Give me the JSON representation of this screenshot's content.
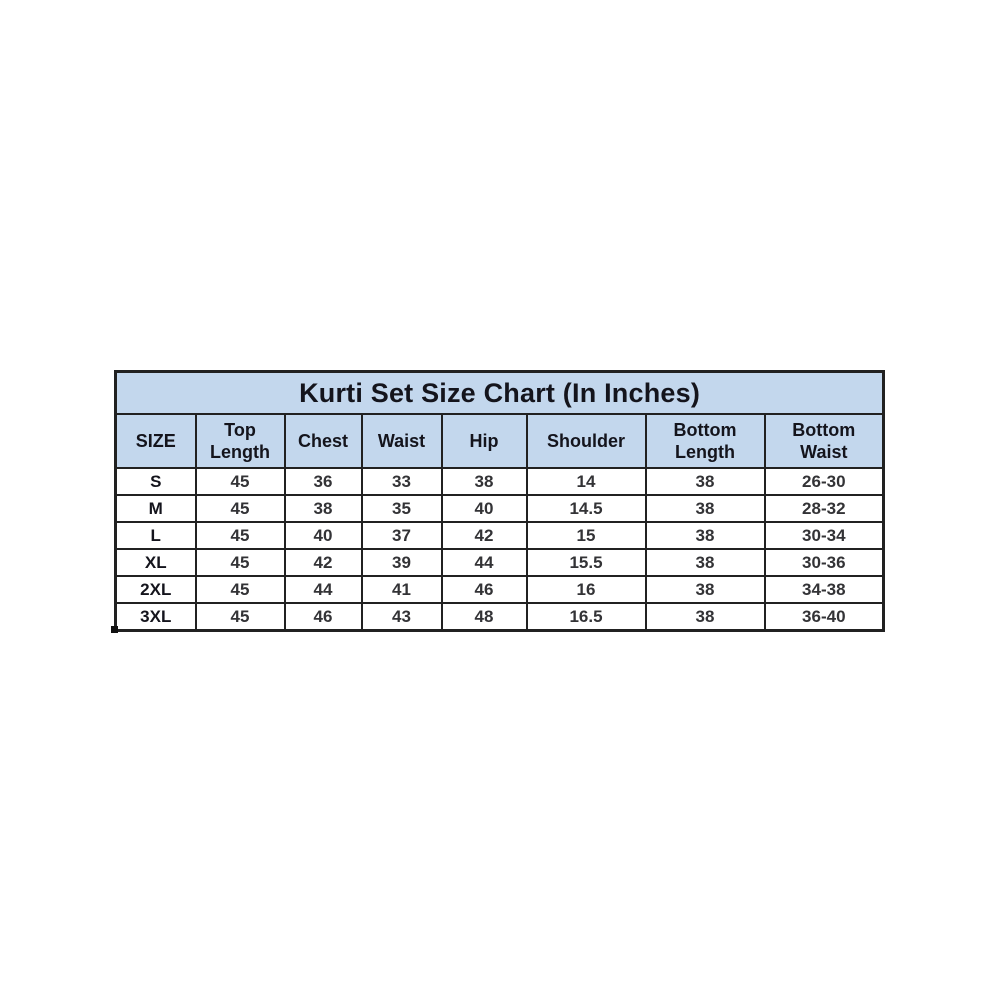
{
  "table_theme": {
    "header_bg": "#c3d7ed",
    "row_bg": "#ffffff",
    "border_color": "#212121",
    "heading_text": "#14141c",
    "data_text": "#333336",
    "page_bg": "#ffffff"
  },
  "chart_data": {
    "type": "table",
    "title": "Kurti Set Size Chart (In Inches)",
    "columns": [
      "SIZE",
      "Top Length",
      "Chest",
      "Waist",
      "Hip",
      "Shoulder",
      "Bottom Length",
      "Bottom Waist"
    ],
    "rows": [
      [
        "S",
        "45",
        "36",
        "33",
        "38",
        "14",
        "38",
        "26-30"
      ],
      [
        "M",
        "45",
        "38",
        "35",
        "40",
        "14.5",
        "38",
        "28-32"
      ],
      [
        "L",
        "45",
        "40",
        "37",
        "42",
        "15",
        "38",
        "30-34"
      ],
      [
        "XL",
        "45",
        "42",
        "39",
        "44",
        "15.5",
        "38",
        "30-36"
      ],
      [
        "2XL",
        "45",
        "44",
        "41",
        "46",
        "16",
        "38",
        "34-38"
      ],
      [
        "3XL",
        "45",
        "46",
        "43",
        "48",
        "16.5",
        "38",
        "36-40"
      ]
    ],
    "layout_hints": {
      "title_row_background": "#c3d7ed",
      "header_row_background": "#c3d7ed",
      "body_row_background": "#ffffff",
      "grid": "on"
    }
  }
}
